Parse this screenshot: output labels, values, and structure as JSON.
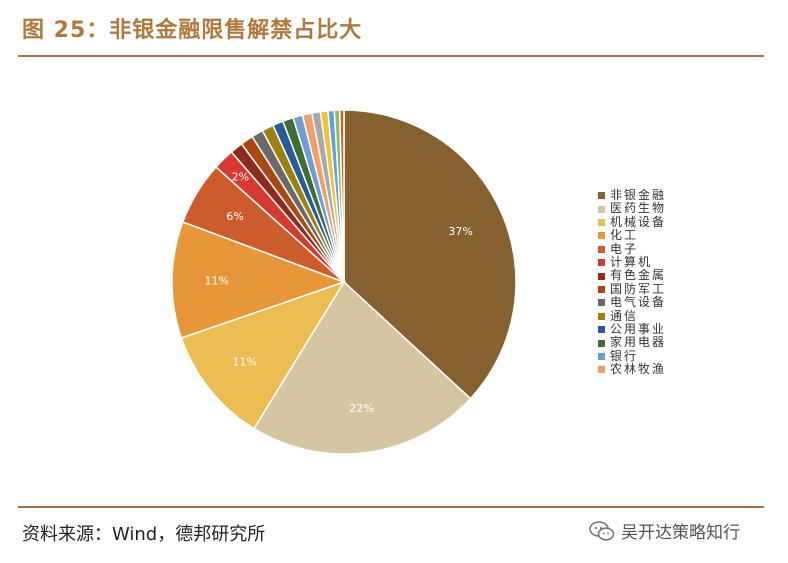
{
  "title": "图 25：非银金融限售解禁占比大",
  "source": "资料来源：Wind，德邦研究所",
  "watermark": "吴开达策略知行",
  "chart_data": {
    "type": "pie",
    "title": "",
    "legend_position": "right",
    "slices": [
      {
        "name": "非银金融",
        "value": 37,
        "label": "37%",
        "color": "#86602f"
      },
      {
        "name": "医药生物",
        "value": 22,
        "label": "22%",
        "color": "#d5c5a1"
      },
      {
        "name": "机械设备",
        "value": 11,
        "label": "11%",
        "color": "#ebbd52"
      },
      {
        "name": "化工",
        "value": 11,
        "label": "11%",
        "color": "#e8963a"
      },
      {
        "name": "电子",
        "value": 6,
        "label": "6%",
        "color": "#cc5c2b"
      },
      {
        "name": "计算机",
        "value": 2,
        "label": "2%",
        "color": "#d8392e"
      },
      {
        "name": "有色金属",
        "value": 1.2,
        "label": "",
        "color": "#8f2a1e"
      },
      {
        "name": "国防军工",
        "value": 1.2,
        "label": "",
        "color": "#a9480f"
      },
      {
        "name": "电气设备",
        "value": 1.1,
        "label": "",
        "color": "#6a6a6a"
      },
      {
        "name": "通信",
        "value": 1.1,
        "label": "",
        "color": "#9b820f"
      },
      {
        "name": "公用事业",
        "value": 1.0,
        "label": "",
        "color": "#2b5a9a"
      },
      {
        "name": "家用电器",
        "value": 1.0,
        "label": "",
        "color": "#3f6e34"
      },
      {
        "name": "银行",
        "value": 0.9,
        "label": "",
        "color": "#6f9cd3"
      },
      {
        "name": "农林牧渔",
        "value": 0.9,
        "label": "",
        "color": "#f0a065"
      },
      {
        "name": "",
        "value": 0.8,
        "label": "",
        "color": "#a9a9a9"
      },
      {
        "name": "",
        "value": 0.7,
        "label": "",
        "color": "#f2c23a"
      },
      {
        "name": "",
        "value": 0.6,
        "label": "",
        "color": "#5fa3de"
      },
      {
        "name": "",
        "value": 0.5,
        "label": "",
        "color": "#8ac06a"
      },
      {
        "name": "",
        "value": 0.4,
        "label": "",
        "color": "#c06a25"
      }
    ],
    "legend": [
      "非银金融",
      "医药生物",
      "机械设备",
      "化工",
      "电子",
      "计算机",
      "有色金属",
      "国防军工",
      "电气设备",
      "通信",
      "公用事业",
      "家用电器",
      "银行",
      "农林牧渔"
    ]
  }
}
